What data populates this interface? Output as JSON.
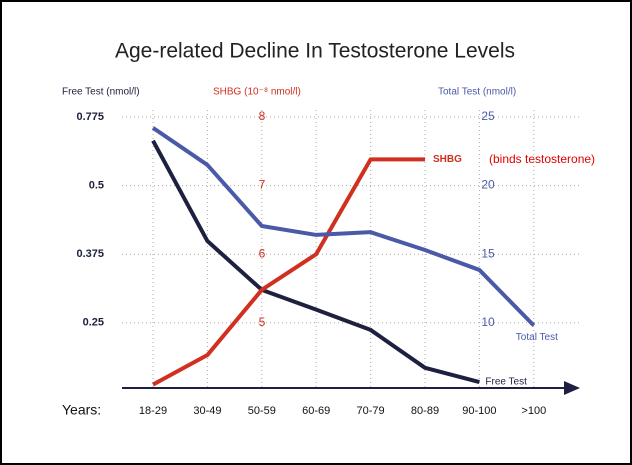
{
  "chart_data": {
    "type": "line",
    "title": "Age-related Decline In Testosterone Levels",
    "x_label": "Years:",
    "categories": [
      "18-29",
      "30-49",
      "50-59",
      "60-69",
      "70-79",
      "80-89",
      "90-100",
      ">100"
    ],
    "y_label": "Free Test (nmol/l)",
    "yticks": [
      0.775,
      0.5,
      0.375,
      0.25
    ],
    "y2_label": "SHBG (10⁻⁸ nmol/l)",
    "y2lim": [
      4.05,
      8.1
    ],
    "y2ticks": [
      8,
      7,
      6,
      5
    ],
    "y3_label": "Total Test (nmol/l)",
    "y3lim": [
      5.25,
      25.5
    ],
    "y3ticks": [
      25,
      20,
      15,
      10
    ],
    "grid": true,
    "series": [
      {
        "name": "Free Test",
        "color": "#1e2040",
        "axis": "y",
        "values": [
          0.68,
          0.399,
          0.31,
          0.274,
          0.237,
          0.168,
          0.142,
          null
        ]
      },
      {
        "name": "SHBG",
        "color": "#d03020",
        "axis": "y2",
        "values": [
          4.1,
          4.53,
          5.48,
          6.0,
          7.38,
          7.38,
          null,
          null
        ]
      },
      {
        "name": "Total Test",
        "color": "#4a5aa8",
        "axis": "y3",
        "values": [
          24.2,
          21.5,
          17.05,
          16.4,
          16.6,
          15.3,
          13.85,
          9.8
        ]
      }
    ],
    "annotations": [
      "(binds testosterone)"
    ]
  }
}
